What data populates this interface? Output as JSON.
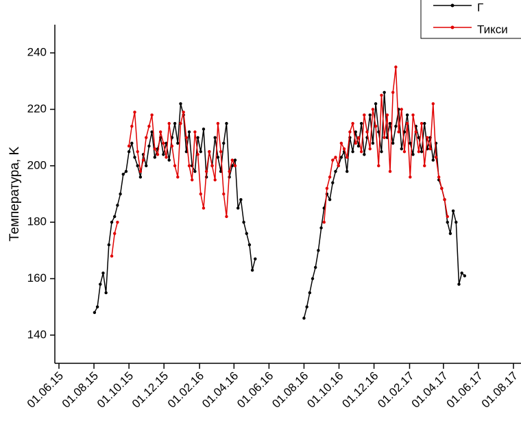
{
  "chart_data": {
    "type": "line",
    "y_label": "Температура, K",
    "x": [
      "02.08.15",
      "07.08.15",
      "12.08.15",
      "17.08.15",
      "22.08.15",
      "27.08.15",
      "01.09.15",
      "06.09.15",
      "11.09.15",
      "16.09.15",
      "21.09.15",
      "26.09.15",
      "01.10.15",
      "06.10.15",
      "11.10.15",
      "16.10.15",
      "21.10.15",
      "26.10.15",
      "31.10.15",
      "05.11.15",
      "10.11.15",
      "15.11.15",
      "20.11.15",
      "25.11.15",
      "30.11.15",
      "05.12.15",
      "10.12.15",
      "15.12.15",
      "20.12.15",
      "25.12.15",
      "30.12.15",
      "04.01.16",
      "09.01.16",
      "14.01.16",
      "19.01.16",
      "24.01.16",
      "29.01.16",
      "03.02.16",
      "08.02.16",
      "13.02.16",
      "18.02.16",
      "23.02.16",
      "28.02.16",
      "04.03.16",
      "09.03.16",
      "14.03.16",
      "19.03.16",
      "24.03.16",
      "29.03.16",
      "03.04.16",
      "08.04.16",
      "13.04.16",
      "18.04.16",
      "23.04.16",
      "28.04.16",
      "03.05.16",
      "08.05.16",
      "01.07.16",
      "01.08.16",
      "06.08.16",
      "11.08.16",
      "16.08.16",
      "21.08.16",
      "26.08.16",
      "31.08.16",
      "05.09.16",
      "10.09.16",
      "15.09.16",
      "20.09.16",
      "25.09.16",
      "30.09.16",
      "05.10.16",
      "10.10.16",
      "15.10.16",
      "20.10.16",
      "25.10.16",
      "30.10.16",
      "04.11.16",
      "09.11.16",
      "14.11.16",
      "19.11.16",
      "24.11.16",
      "29.11.16",
      "04.12.16",
      "09.12.16",
      "14.12.16",
      "19.12.16",
      "24.12.16",
      "29.12.16",
      "03.01.17",
      "08.01.17",
      "13.01.17",
      "18.01.17",
      "23.01.17",
      "28.01.17",
      "02.02.17",
      "07.02.17",
      "12.02.17",
      "17.02.17",
      "22.02.17",
      "27.02.17",
      "04.03.17",
      "09.03.17",
      "14.03.17",
      "19.03.17",
      "24.03.17",
      "29.03.17",
      "03.04.17",
      "08.04.17",
      "13.04.17",
      "18.04.17",
      "23.04.17",
      "28.04.17",
      "03.05.17",
      "08.05.17"
    ],
    "series": [
      {
        "name": "Г",
        "color": "#000000",
        "values": [
          148,
          150,
          158,
          162,
          155,
          172,
          180,
          182,
          186,
          190,
          197,
          198,
          205,
          208,
          203,
          200,
          196,
          204,
          200,
          207,
          212,
          203,
          206,
          210,
          204,
          208,
          202,
          210,
          215,
          208,
          222,
          218,
          205,
          212,
          200,
          198,
          210,
          205,
          213,
          196,
          205,
          200,
          210,
          203,
          198,
          208,
          215,
          196,
          200,
          202,
          185,
          188,
          180,
          176,
          172,
          163,
          167,
          null,
          146,
          150,
          155,
          160,
          164,
          170,
          178,
          185,
          190,
          188,
          194,
          198,
          200,
          203,
          205,
          198,
          210,
          205,
          212,
          207,
          215,
          204,
          210,
          218,
          208,
          222,
          212,
          205,
          226,
          210,
          215,
          208,
          214,
          220,
          206,
          212,
          218,
          208,
          204,
          214,
          210,
          205,
          215,
          206,
          210,
          202,
          208,
          195,
          192,
          188,
          180,
          176,
          184,
          180,
          158,
          162,
          161
        ]
      },
      {
        "name": "Тикси",
        "color": "#e00000",
        "values": [
          null,
          null,
          null,
          null,
          null,
          null,
          168,
          176,
          180,
          null,
          null,
          null,
          207,
          214,
          219,
          205,
          198,
          202,
          210,
          214,
          218,
          206,
          204,
          212,
          208,
          203,
          215,
          207,
          200,
          196,
          215,
          219,
          210,
          200,
          195,
          212,
          204,
          190,
          185,
          198,
          205,
          200,
          195,
          215,
          205,
          190,
          182,
          198,
          202,
          200,
          null,
          null,
          null,
          null,
          null,
          null,
          null,
          null,
          null,
          null,
          null,
          null,
          null,
          null,
          null,
          180,
          192,
          196,
          202,
          203,
          200,
          208,
          206,
          203,
          212,
          215,
          208,
          210,
          205,
          218,
          212,
          206,
          220,
          214,
          200,
          225,
          210,
          218,
          198,
          226,
          235,
          212,
          220,
          205,
          215,
          196,
          218,
          212,
          205,
          215,
          200,
          210,
          206,
          222,
          203,
          196,
          192,
          188,
          182,
          null,
          null,
          null,
          null,
          null,
          null
        ]
      }
    ],
    "xlim": [
      "01.06.15",
      "01.08.17"
    ],
    "xticks": [
      "01.06.15",
      "01.08.15",
      "01.10.15",
      "01.12.15",
      "01.02.16",
      "01.04.16",
      "01.06.16",
      "01.08.16",
      "01.10.16",
      "01.12.16",
      "01.02.17",
      "01.04.17",
      "01.06.17",
      "01.08.17"
    ],
    "ylim": [
      130,
      250
    ],
    "yticks": [
      140,
      160,
      180,
      200,
      220,
      240
    ]
  }
}
